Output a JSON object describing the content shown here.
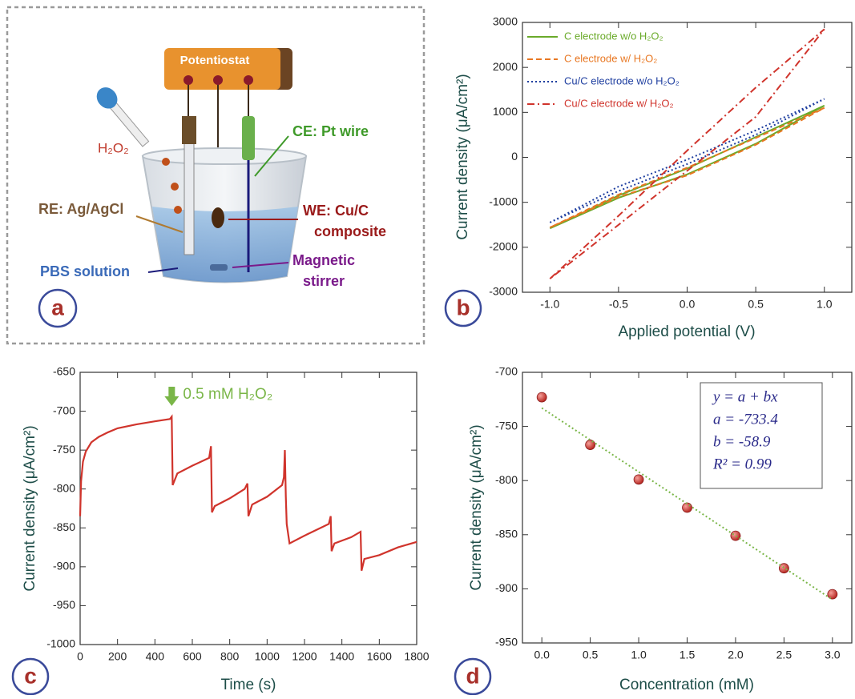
{
  "diagram": {
    "panel_label": "a",
    "labels": {
      "potentiostat": "Potentiostat",
      "h2o2": "H₂O₂",
      "ce": "CE: Pt wire",
      "re": "RE: Ag/AgCl",
      "we": [
        "WE: Cu/C",
        "composite"
      ],
      "pbs": "PBS solution",
      "stirrer": [
        "Magnetic",
        "stirrer"
      ]
    }
  },
  "chart_data": [
    {
      "type": "line",
      "panel_label": "b",
      "x_label": "Applied potential (V)",
      "y_label": "Current density (μA/cm²)",
      "xlim": [
        -1.2,
        1.2
      ],
      "xticks": [
        {
          "value": -1,
          "label": "-1.0"
        },
        {
          "value": -0.5,
          "label": "-0.5"
        },
        {
          "value": 0,
          "label": "0.0"
        },
        {
          "value": 0.5,
          "label": "0.5"
        },
        {
          "value": 1,
          "label": "1.0"
        }
      ],
      "ylim": [
        -3000,
        3000
      ],
      "yticks": [
        -3000,
        -2000,
        -1000,
        0,
        1000,
        2000,
        3000
      ],
      "legend": "upper left",
      "series": [
        {
          "name": "C electrode w/o H₂O₂",
          "color": "#6aaa2a",
          "dash": "solid",
          "x": [
            -1,
            -0.5,
            0,
            0.5,
            1,
            0.5,
            0,
            -0.5,
            -1
          ],
          "values": [
            -1580,
            -900,
            -380,
            300,
            1150,
            450,
            -250,
            -850,
            -1580
          ]
        },
        {
          "name": "C electrode w/ H₂O₂",
          "color": "#e87722",
          "dash": "dashed",
          "x": [
            -1,
            -0.5,
            0,
            0.5,
            1,
            0.5,
            0,
            -0.5,
            -1
          ],
          "values": [
            -1560,
            -880,
            -400,
            280,
            1100,
            430,
            -230,
            -830,
            -1560
          ]
        },
        {
          "name": "Cu/C electrode w/o H₂O₂",
          "color": "#1f3fa0",
          "dash": "dotted",
          "x": [
            -1,
            -0.5,
            0,
            0.5,
            1,
            0.5,
            0,
            -0.5,
            -1
          ],
          "values": [
            -1450,
            -750,
            -150,
            500,
            1300,
            600,
            -50,
            -650,
            -1450
          ]
        },
        {
          "name": "Cu/C electrode w/ H₂O₂",
          "color": "#d0342c",
          "dash": "dashdot",
          "x": [
            -1,
            -0.5,
            0,
            0.5,
            1,
            0.5,
            0,
            -0.5,
            -1
          ],
          "values": [
            -2700,
            -1300,
            150,
            1550,
            2850,
            900,
            -300,
            -1500,
            -2700
          ]
        }
      ]
    },
    {
      "type": "line",
      "panel_label": "c",
      "x_label": "Time (s)",
      "y_label": "Current density (μA/cm²)",
      "xlim": [
        0,
        1800
      ],
      "xticks": [
        0,
        200,
        400,
        600,
        800,
        1000,
        1200,
        1400,
        1600,
        1800
      ],
      "ylim": [
        -1000,
        -650
      ],
      "yticks": [
        -1000,
        -950,
        -900,
        -850,
        -800,
        -750,
        -700,
        -650
      ],
      "annotation": {
        "text": "0.5 mM H₂O₂",
        "x": 490,
        "color": "#7ab648"
      },
      "series": [
        {
          "color": "#d0342c",
          "dash": "solid",
          "x": [
            0,
            5,
            15,
            30,
            60,
            100,
            150,
            200,
            300,
            400,
            480,
            490,
            495,
            520,
            600,
            690,
            700,
            705,
            720,
            800,
            880,
            895,
            900,
            920,
            1000,
            1080,
            1090,
            1095,
            1100,
            1105,
            1120,
            1200,
            1330,
            1340,
            1345,
            1360,
            1450,
            1500,
            1505,
            1520,
            1600,
            1700,
            1800
          ],
          "values": [
            -835,
            -790,
            -765,
            -752,
            -740,
            -733,
            -727,
            -722,
            -717,
            -713,
            -710,
            -707,
            -795,
            -780,
            -770,
            -760,
            -745,
            -830,
            -822,
            -812,
            -800,
            -793,
            -835,
            -820,
            -810,
            -795,
            -785,
            -750,
            -810,
            -845,
            -870,
            -860,
            -845,
            -835,
            -880,
            -870,
            -862,
            -855,
            -905,
            -890,
            -885,
            -875,
            -868
          ]
        }
      ]
    },
    {
      "type": "scatter",
      "panel_label": "d",
      "x_label": "Concentration (mM)",
      "y_label": "Current density (μA/cm²)",
      "xlim": [
        -0.2,
        3.2
      ],
      "xticks": [
        {
          "value": 0,
          "label": "0.0"
        },
        {
          "value": 0.5,
          "label": "0.5"
        },
        {
          "value": 1,
          "label": "1.0"
        },
        {
          "value": 1.5,
          "label": "1.5"
        },
        {
          "value": 2,
          "label": "2.0"
        },
        {
          "value": 2.5,
          "label": "2.5"
        },
        {
          "value": 3,
          "label": "3.0"
        }
      ],
      "ylim": [
        -950,
        -700
      ],
      "yticks": [
        -950,
        -900,
        -850,
        -800,
        -750,
        -700
      ],
      "annotations": [
        "y = a + bx",
        "a = -733.4",
        "b = -58.9",
        "R² = 0.99"
      ],
      "series": [
        {
          "type": "scatter",
          "color": "#d0342c",
          "x": [
            0,
            0.5,
            1,
            1.5,
            2,
            2.5,
            3
          ],
          "values": [
            -723,
            -767,
            -799,
            -825,
            -851,
            -881,
            -905
          ]
        },
        {
          "type": "line",
          "color": "#7ab648",
          "dash": "dotted",
          "x": [
            0,
            3
          ],
          "values": [
            -733,
            -910
          ]
        }
      ]
    }
  ]
}
